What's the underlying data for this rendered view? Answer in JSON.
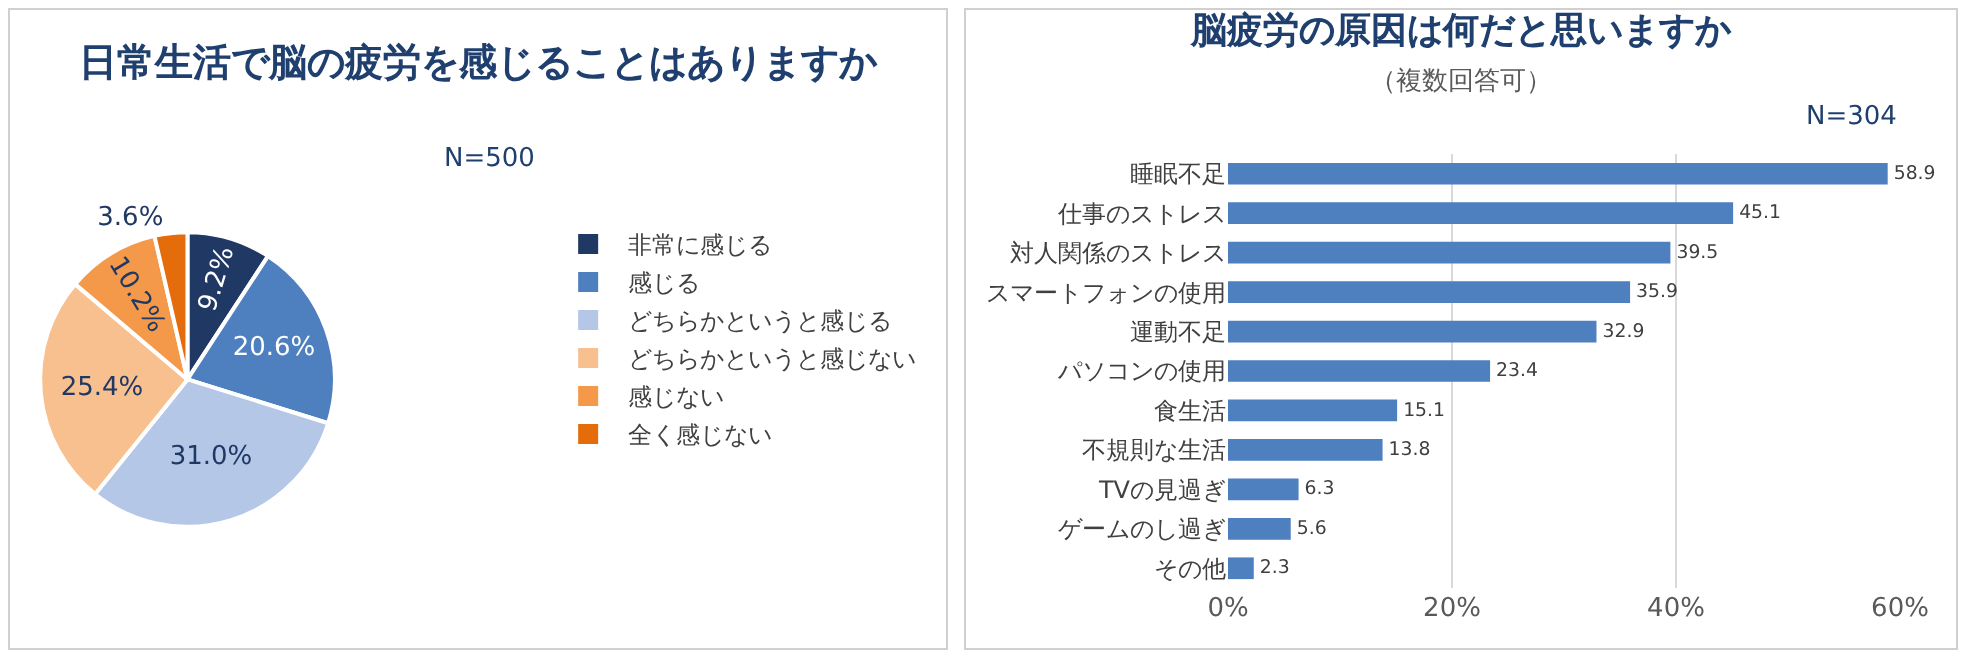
{
  "chart_data": [
    {
      "type": "pie",
      "title": "日常生活で脳の疲労を感じることはありますか",
      "annotations": [
        "N=500"
      ],
      "legend": "right",
      "categories": [
        "非常に感じる",
        "感じる",
        "どちらかというと感じる",
        "どちらかというと感じない",
        "感じない",
        "全く感じない"
      ],
      "values": [
        9.2,
        20.6,
        31.0,
        25.4,
        10.2,
        3.6
      ],
      "value_labels": [
        "9.2%",
        "20.6%",
        "31.0%",
        "25.4%",
        "10.2%",
        "3.6%"
      ],
      "colors": [
        "#1f3864",
        "#4e7fbf",
        "#b4c7e7",
        "#f8bf8f",
        "#f4994a",
        "#e46c0a"
      ]
    },
    {
      "type": "bar",
      "orientation": "horizontal",
      "title": "脳疲労の原因は何だと思いますか",
      "subtitle": "（複数回答可）",
      "annotations": [
        "N=304"
      ],
      "categories": [
        "睡眠不足",
        "仕事のストレス",
        "対人関係のストレス",
        "スマートフォンの使用",
        "運動不足",
        "パソコンの使用",
        "食生活",
        "不規則な生活",
        "TVの見過ぎ",
        "ゲームのし過ぎ",
        "その他"
      ],
      "values": [
        58.9,
        45.1,
        39.5,
        35.9,
        32.9,
        23.4,
        15.1,
        13.8,
        6.3,
        5.6,
        2.3
      ],
      "color": "#4e7fbf",
      "data_labels": true,
      "grid": "x",
      "legend": false,
      "xlim": [
        0,
        60
      ],
      "xticks": [
        {
          "value": 0,
          "label": "0%"
        },
        {
          "value": 20,
          "label": "20%"
        },
        {
          "value": 40,
          "label": "40%"
        },
        {
          "value": 60,
          "label": "60%"
        }
      ]
    }
  ]
}
